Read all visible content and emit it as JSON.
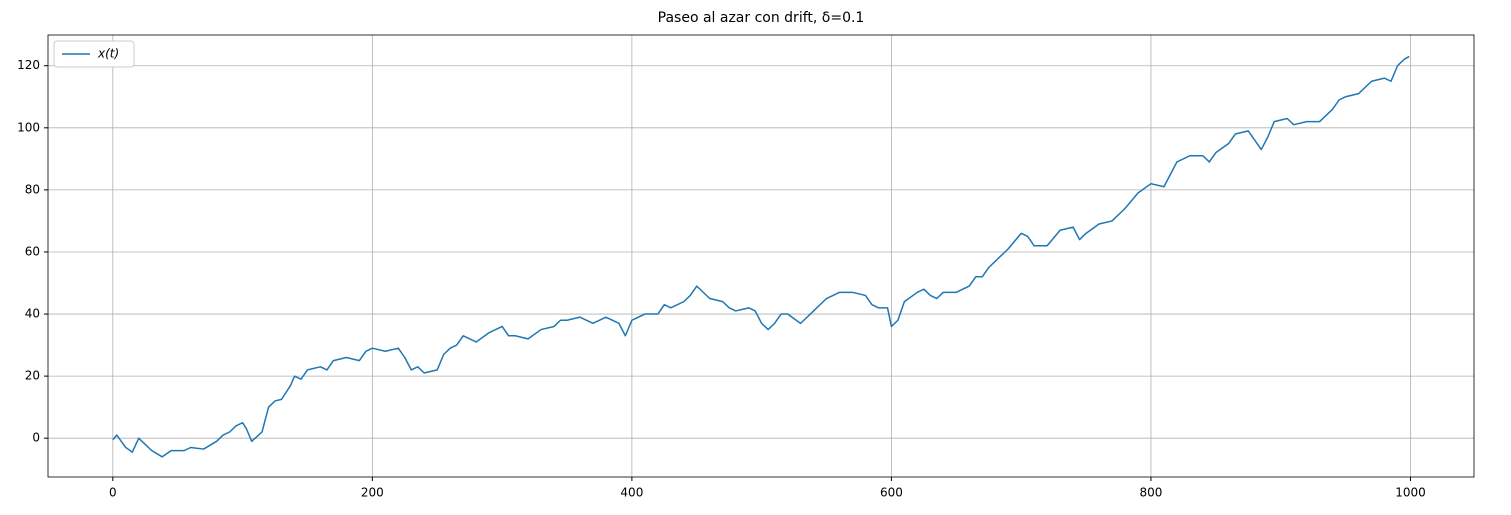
{
  "chart_data": {
    "type": "line",
    "title": "Paseo al azar con drift, δ=0.1",
    "x": [
      0,
      3,
      10,
      15,
      20,
      25,
      30,
      38,
      45,
      55,
      60,
      70,
      80,
      85,
      90,
      95,
      100,
      103,
      107,
      115,
      120,
      125,
      130,
      137,
      140,
      145,
      150,
      160,
      165,
      170,
      180,
      190,
      195,
      200,
      210,
      220,
      225,
      230,
      235,
      240,
      250,
      255,
      260,
      265,
      270,
      280,
      290,
      300,
      305,
      310,
      320,
      330,
      340,
      345,
      350,
      360,
      370,
      380,
      390,
      395,
      400,
      410,
      420,
      425,
      430,
      440,
      445,
      450,
      460,
      470,
      475,
      480,
      490,
      495,
      500,
      505,
      510,
      515,
      520,
      530,
      540,
      550,
      560,
      570,
      580,
      585,
      590,
      597,
      600,
      605,
      610,
      620,
      625,
      630,
      635,
      640,
      650,
      660,
      665,
      670,
      675,
      680,
      690,
      700,
      705,
      710,
      720,
      730,
      740,
      745,
      750,
      760,
      770,
      780,
      790,
      800,
      810,
      815,
      820,
      830,
      840,
      845,
      850,
      860,
      865,
      875,
      880,
      885,
      890,
      895,
      905,
      910,
      920,
      930,
      940,
      945,
      950,
      960,
      970,
      980,
      985,
      990,
      995,
      999
    ],
    "series": [
      {
        "name": "x(t)",
        "color": "#1f77b4",
        "values": [
          -0.5,
          1,
          -3,
          -4.5,
          0,
          -2,
          -4,
          -6,
          -4,
          -4,
          -3,
          -3.5,
          -1,
          1,
          2,
          4,
          5,
          3,
          -1,
          2,
          10,
          12,
          12.5,
          17,
          20,
          19,
          22,
          23,
          22,
          25,
          26,
          25,
          28,
          29,
          28,
          29,
          26,
          22,
          23,
          21,
          22,
          27,
          29,
          30,
          33,
          31,
          34,
          36,
          33,
          33,
          32,
          35,
          36,
          38,
          38,
          39,
          37,
          39,
          37,
          33,
          38,
          40,
          40,
          43,
          42,
          44,
          46,
          49,
          45,
          44,
          42,
          41,
          42,
          41,
          37,
          35,
          37,
          40,
          40,
          37,
          41,
          45,
          47,
          47,
          46,
          43,
          42,
          42,
          36,
          38,
          44,
          47,
          48,
          46,
          45,
          47,
          47,
          49,
          52,
          52,
          55,
          57,
          61,
          66,
          65,
          62,
          62,
          67,
          68,
          64,
          66,
          69,
          70,
          74,
          79,
          82,
          81,
          85,
          89,
          91,
          91,
          89,
          92,
          95,
          98,
          99,
          96,
          93,
          97,
          102,
          103,
          101,
          102,
          102,
          106,
          109,
          110,
          111,
          115,
          116,
          115,
          120,
          122,
          123
        ]
      }
    ],
    "xlim": [
      -49.95,
      1048.95
    ],
    "ylim": [
      -12.5,
      129.9
    ],
    "xticks": [
      0,
      200,
      400,
      600,
      800,
      1000
    ],
    "yticks": [
      0,
      20,
      40,
      60,
      80,
      100,
      120
    ],
    "grid": true,
    "legend": "upper left"
  }
}
